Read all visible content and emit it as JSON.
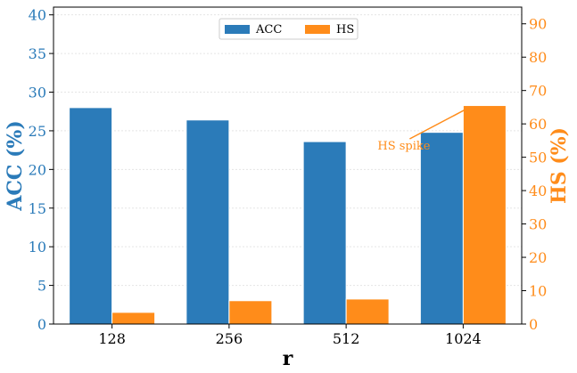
{
  "chart_data": {
    "type": "bar",
    "categories": [
      "128",
      "256",
      "512",
      "1024"
    ],
    "xlabel": "r",
    "y_left": {
      "label": "ACC (%)",
      "lim": [
        0,
        41
      ],
      "ticks": [
        0,
        5,
        10,
        15,
        20,
        25,
        30,
        35,
        40
      ]
    },
    "y_right": {
      "label": "HS (%)",
      "lim": [
        0,
        95
      ],
      "ticks": [
        0,
        10,
        20,
        30,
        40,
        50,
        60,
        70,
        80,
        90
      ]
    },
    "series": [
      {
        "name": "ACC",
        "axis": "left",
        "color": "#2b7bb9",
        "values": [
          28.0,
          26.4,
          23.6,
          24.8
        ]
      },
      {
        "name": "HS",
        "axis": "right",
        "color": "#ff8c1a",
        "values": [
          3.5,
          7.0,
          7.5,
          65.5
        ]
      }
    ],
    "annotation": {
      "text": "HS spike",
      "category": "1024",
      "series": "HS"
    },
    "grid": true,
    "legend_position": "top-center"
  },
  "colors": {
    "acc": "#2b7bb9",
    "hs": "#ff8c1a",
    "axis": "#000000",
    "grid": "#e5e5e5"
  }
}
